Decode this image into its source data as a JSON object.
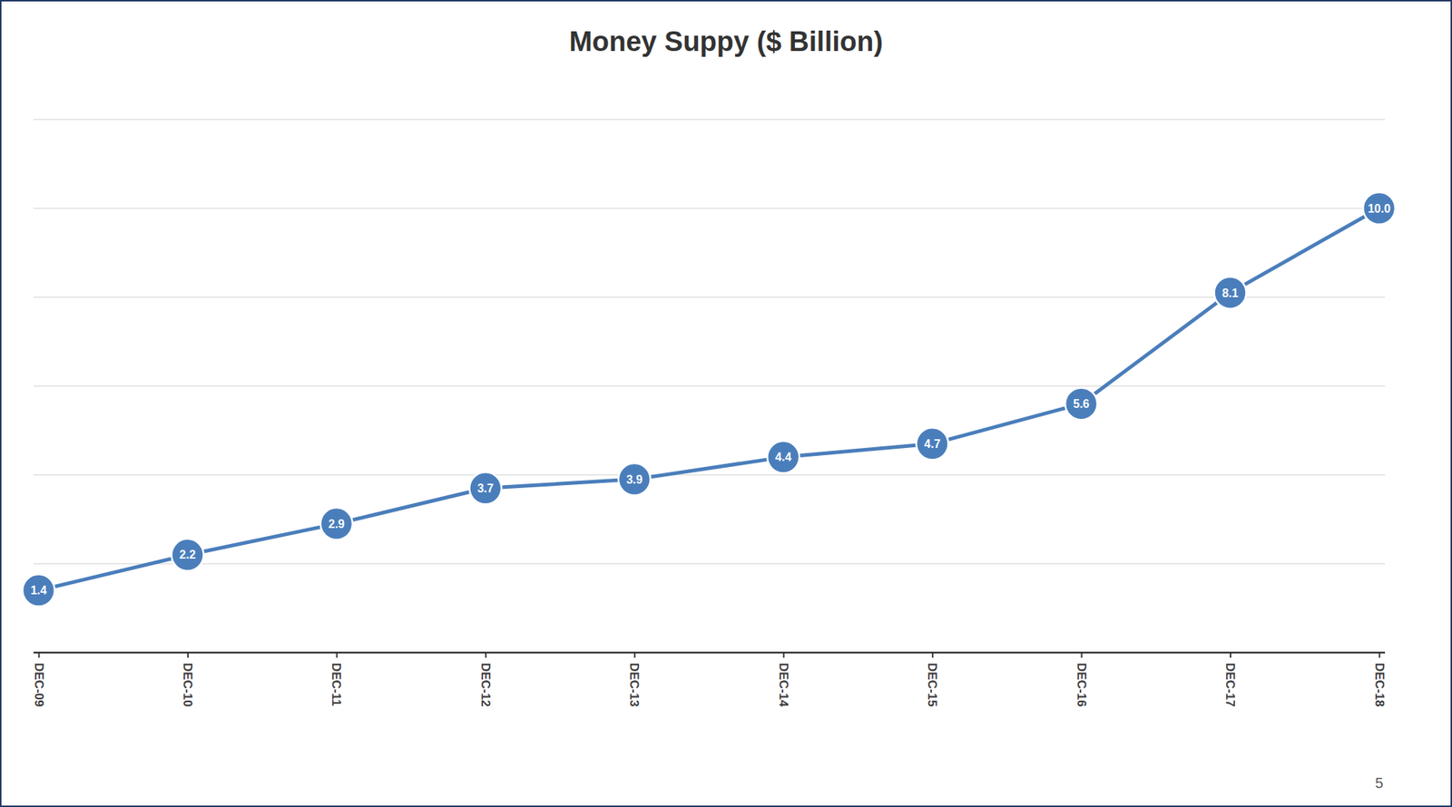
{
  "chart_data": {
    "type": "line",
    "title": "Money Suppy ($ Billion)",
    "categories": [
      "DEC-09",
      "DEC-10",
      "DEC-11",
      "DEC-12",
      "DEC-13",
      "DEC-14",
      "DEC-15",
      "DEC-16",
      "DEC-17",
      "DEC-18"
    ],
    "values": [
      1.4,
      2.2,
      2.9,
      3.7,
      3.9,
      4.4,
      4.7,
      5.6,
      8.1,
      10.0
    ],
    "value_labels": [
      "1.4",
      "2.2",
      "2.9",
      "3.7",
      "3.9",
      "4.4",
      "4.7",
      "5.6",
      "8.1",
      "10.0"
    ],
    "color": "#4a7ebb",
    "marker": "circle",
    "data_labels": true,
    "ylim": [
      0,
      12
    ],
    "yticks": [
      0,
      2,
      4,
      6,
      8,
      10,
      12
    ],
    "grid": true,
    "tick_labels": "x"
  },
  "page": {
    "number": "5"
  }
}
